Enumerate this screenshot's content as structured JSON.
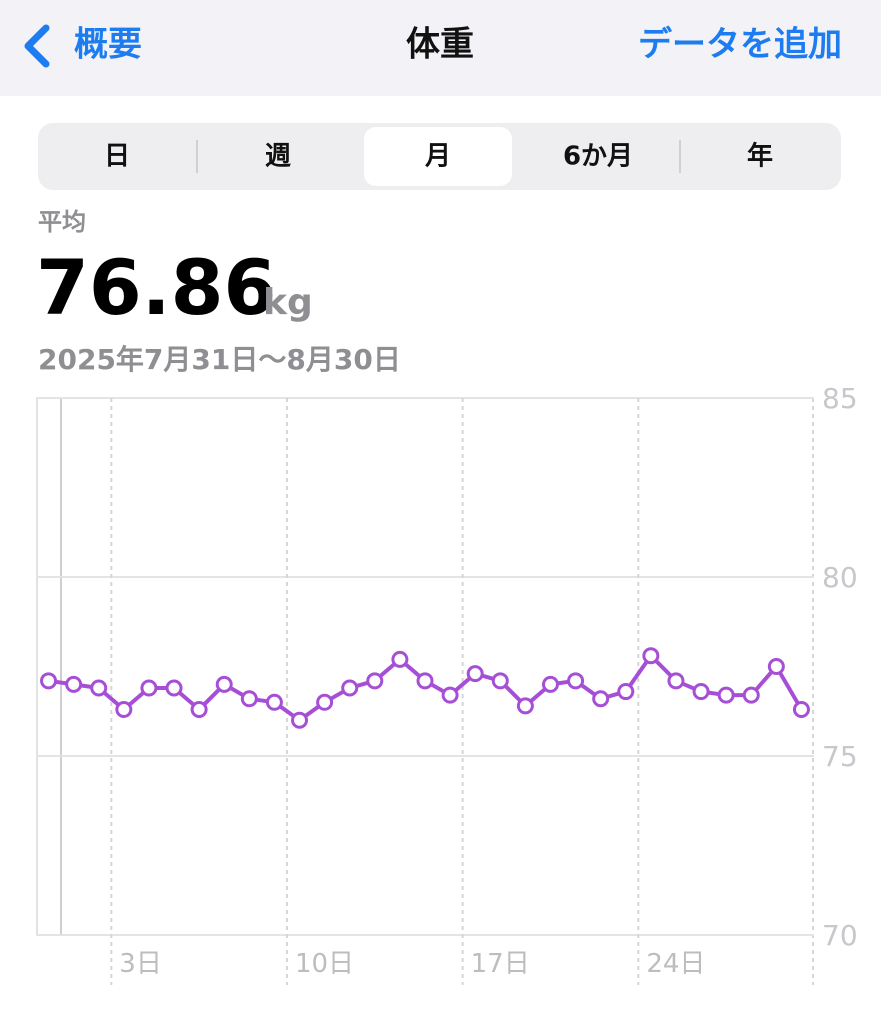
{
  "nav": {
    "back": "概要",
    "title": "体重",
    "action": "データを追加"
  },
  "segments": [
    "日",
    "週",
    "月",
    "6か月",
    "年"
  ],
  "summary": {
    "label": "平均",
    "value": "76.86",
    "unit": "kg",
    "range": "2025年7月31日〜8月30日"
  },
  "chart_data": {
    "type": "line",
    "categories": [
      null,
      null,
      null,
      "3日",
      null,
      null,
      null,
      null,
      null,
      null,
      "10日",
      null,
      null,
      null,
      null,
      null,
      null,
      "17日",
      null,
      null,
      null,
      null,
      null,
      null,
      "24日",
      null,
      null,
      null,
      null,
      null,
      null
    ],
    "values": [
      77.1,
      77.0,
      76.9,
      76.3,
      76.9,
      76.9,
      76.3,
      77.0,
      76.6,
      76.5,
      76.0,
      76.5,
      76.9,
      77.1,
      77.7,
      77.1,
      76.7,
      77.3,
      77.1,
      76.4,
      77.0,
      77.1,
      76.6,
      76.8,
      77.8,
      77.1,
      76.8,
      76.7,
      76.7,
      77.5,
      76.3
    ],
    "color": "#a64fd6",
    "ylim": [
      70,
      85
    ],
    "yticks": [
      70,
      75,
      80,
      85
    ],
    "grid": true,
    "y_axis_side": "right"
  }
}
